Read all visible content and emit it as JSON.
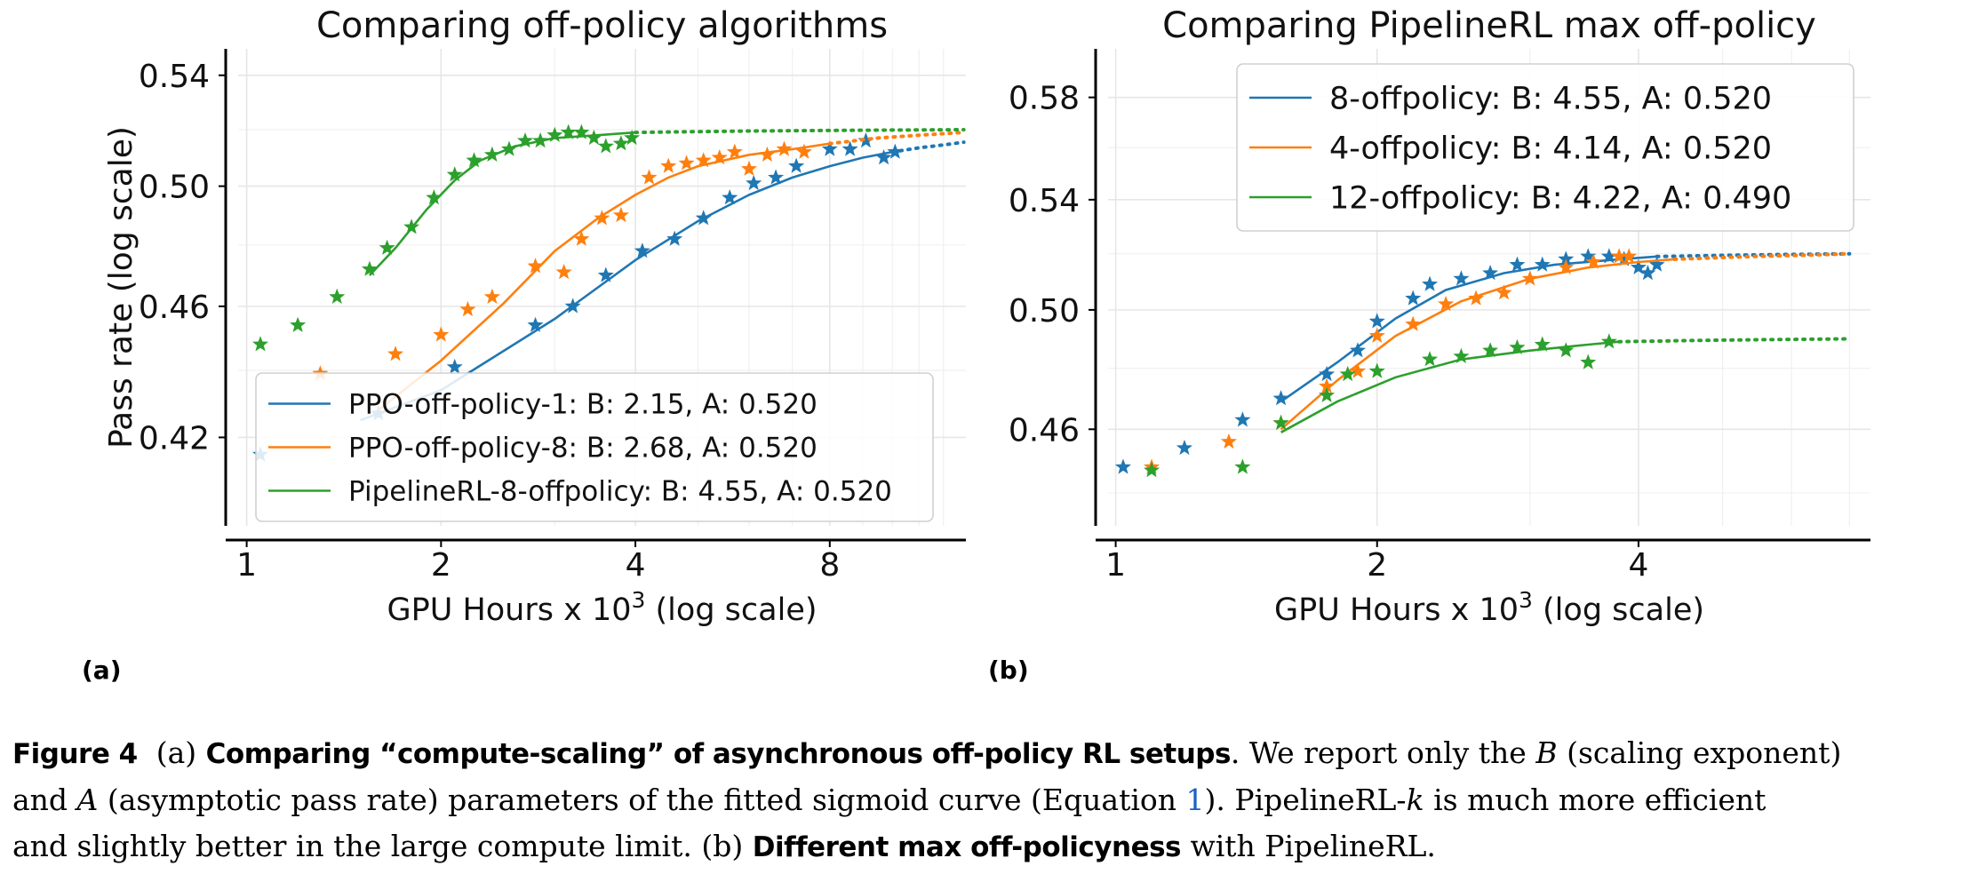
{
  "colors": {
    "blue": "#1f77b4",
    "orange": "#ff7f0e",
    "green": "#2ca02c",
    "grid": "#e6e6e6",
    "link": "#1a5fc7"
  },
  "panel_labels": {
    "a": "(a)",
    "b": "(b)"
  },
  "caption": {
    "fig": "Figure 4",
    "a_tag": "(a)",
    "bold1": "Comparing “compute-scaling” of asynchronous off-policy RL setups",
    "t1": ". We report only the ",
    "B": "B",
    "t2": " (scaling exponent)",
    "t3": "and ",
    "A": "A",
    "t4": " (asymptotic pass rate) parameters of the fitted sigmoid curve (Equation ",
    "eq": "1",
    "t5": "). PipelineRL-",
    "k": "k",
    "t6": " is much more efficient",
    "t7": "and slightly better in the large compute limit. (b) ",
    "bold2": "Different max off-policyness",
    "t8": " with PipelineRL."
  },
  "chart_data": [
    {
      "type": "scatter",
      "title": "Comparing off-policy algorithms",
      "xlabel": "GPU Hours x 10³ (log scale)",
      "ylabel": "Pass rate (log scale)",
      "x_scale": "log",
      "y_scale": "log",
      "xlim": [
        0.97,
        13.0
      ],
      "ylim": [
        0.395,
        0.55
      ],
      "xticks": [
        1,
        2,
        4,
        8
      ],
      "yticks": [
        0.42,
        0.46,
        0.5,
        0.54
      ],
      "grid": true,
      "legend": "lower-center",
      "series": [
        {
          "name": "PPO-off-policy-1: B: 2.15, A: 0.520",
          "color": "blue",
          "points": [
            [
              1.05,
              0.415
            ],
            [
              1.6,
              0.427
            ],
            [
              2.1,
              0.441
            ],
            [
              2.8,
              0.454
            ],
            [
              3.2,
              0.46
            ],
            [
              3.6,
              0.47
            ],
            [
              4.1,
              0.478
            ],
            [
              4.6,
              0.482
            ],
            [
              5.1,
              0.489
            ],
            [
              5.6,
              0.496
            ],
            [
              6.1,
              0.501
            ],
            [
              6.6,
              0.503
            ],
            [
              7.1,
              0.507
            ],
            [
              8.0,
              0.513
            ],
            [
              8.6,
              0.513
            ],
            [
              9.1,
              0.516
            ],
            [
              9.7,
              0.51
            ],
            [
              10.1,
              0.512
            ]
          ],
          "fit": [
            [
              1.5,
              0.425
            ],
            [
              2.0,
              0.434
            ],
            [
              3.0,
              0.456
            ],
            [
              4.0,
              0.475
            ],
            [
              5.0,
              0.488
            ],
            [
              6.0,
              0.497
            ],
            [
              7.0,
              0.503
            ],
            [
              8.0,
              0.507
            ],
            [
              9.0,
              0.51
            ],
            [
              10.0,
              0.512
            ]
          ],
          "extrapolation": [
            [
              10.0,
              0.512
            ],
            [
              11.0,
              0.5135
            ],
            [
              12.0,
              0.5145
            ],
            [
              12.9,
              0.5155
            ]
          ]
        },
        {
          "name": "PPO-off-policy-8: B: 2.68, A: 0.520",
          "color": "orange",
          "points": [
            [
              1.3,
              0.439
            ],
            [
              1.7,
              0.445
            ],
            [
              2.0,
              0.451
            ],
            [
              2.2,
              0.459
            ],
            [
              2.4,
              0.463
            ],
            [
              2.8,
              0.473
            ],
            [
              3.1,
              0.471
            ],
            [
              3.3,
              0.482
            ],
            [
              3.55,
              0.489
            ],
            [
              3.8,
              0.49
            ],
            [
              4.2,
              0.503
            ],
            [
              4.5,
              0.507
            ],
            [
              4.8,
              0.508
            ],
            [
              5.1,
              0.509
            ],
            [
              5.4,
              0.51
            ],
            [
              5.7,
              0.512
            ],
            [
              6.0,
              0.506
            ],
            [
              6.4,
              0.511
            ],
            [
              6.8,
              0.513
            ],
            [
              7.3,
              0.512
            ]
          ],
          "fit": [
            [
              1.6,
              0.428
            ],
            [
              2.0,
              0.443
            ],
            [
              2.5,
              0.461
            ],
            [
              3.0,
              0.478
            ],
            [
              3.5,
              0.489
            ],
            [
              4.0,
              0.497
            ],
            [
              4.5,
              0.503
            ],
            [
              5.0,
              0.507
            ],
            [
              6.0,
              0.511
            ],
            [
              7.0,
              0.513
            ],
            [
              8.0,
              0.515
            ]
          ],
          "extrapolation": [
            [
              8.0,
              0.515
            ],
            [
              9.5,
              0.517
            ],
            [
              11.0,
              0.518
            ],
            [
              12.9,
              0.519
            ]
          ]
        },
        {
          "name": "PipelineRL-8-offpolicy: B: 4.55, A: 0.520",
          "color": "green",
          "points": [
            [
              1.05,
              0.448
            ],
            [
              1.2,
              0.454
            ],
            [
              1.38,
              0.463
            ],
            [
              1.55,
              0.472
            ],
            [
              1.65,
              0.479
            ],
            [
              1.8,
              0.486
            ],
            [
              1.95,
              0.496
            ],
            [
              2.1,
              0.504
            ],
            [
              2.25,
              0.509
            ],
            [
              2.4,
              0.511
            ],
            [
              2.55,
              0.513
            ],
            [
              2.7,
              0.516
            ],
            [
              2.85,
              0.516
            ],
            [
              3.0,
              0.518
            ],
            [
              3.15,
              0.519
            ],
            [
              3.3,
              0.519
            ],
            [
              3.45,
              0.517
            ],
            [
              3.6,
              0.514
            ],
            [
              3.8,
              0.515
            ],
            [
              3.95,
              0.517
            ]
          ],
          "fit": [
            [
              1.55,
              0.47
            ],
            [
              1.7,
              0.479
            ],
            [
              1.9,
              0.492
            ],
            [
              2.1,
              0.502
            ],
            [
              2.3,
              0.509
            ],
            [
              2.6,
              0.514
            ],
            [
              3.0,
              0.517
            ],
            [
              3.5,
              0.518
            ],
            [
              4.0,
              0.519
            ]
          ],
          "extrapolation": [
            [
              4.0,
              0.519
            ],
            [
              6.0,
              0.5195
            ],
            [
              9.0,
              0.5198
            ],
            [
              12.9,
              0.52
            ]
          ]
        }
      ]
    },
    {
      "type": "scatter",
      "title": "Comparing PipelineRL max off-policy",
      "xlabel": "GPU Hours x 10³ (log scale)",
      "ylabel": "",
      "x_scale": "log",
      "y_scale": "log",
      "xlim": [
        0.98,
        7.4
      ],
      "ylim": [
        0.43,
        0.6
      ],
      "xticks": [
        1,
        2,
        4
      ],
      "yticks": [
        0.46,
        0.5,
        0.54,
        0.58
      ],
      "grid": true,
      "legend": "upper-right",
      "series": [
        {
          "name": "8-offpolicy: B: 4.55, A: 0.520",
          "color": "blue",
          "points": [
            [
              1.02,
              0.448
            ],
            [
              1.2,
              0.454
            ],
            [
              1.4,
              0.463
            ],
            [
              1.55,
              0.47
            ],
            [
              1.75,
              0.478
            ],
            [
              1.9,
              0.486
            ],
            [
              2.0,
              0.496
            ],
            [
              2.2,
              0.504
            ],
            [
              2.3,
              0.509
            ],
            [
              2.5,
              0.511
            ],
            [
              2.7,
              0.513
            ],
            [
              2.9,
              0.516
            ],
            [
              3.1,
              0.516
            ],
            [
              3.3,
              0.518
            ],
            [
              3.5,
              0.519
            ],
            [
              3.7,
              0.519
            ],
            [
              3.85,
              0.518
            ],
            [
              4.0,
              0.515
            ],
            [
              4.1,
              0.513
            ],
            [
              4.2,
              0.516
            ]
          ],
          "fit": [
            [
              1.55,
              0.469
            ],
            [
              1.8,
              0.482
            ],
            [
              2.1,
              0.497
            ],
            [
              2.4,
              0.507
            ],
            [
              2.8,
              0.513
            ],
            [
              3.2,
              0.516
            ],
            [
              3.8,
              0.518
            ],
            [
              4.2,
              0.519
            ]
          ],
          "extrapolation": [
            [
              4.2,
              0.519
            ],
            [
              5.2,
              0.5195
            ],
            [
              6.2,
              0.5198
            ],
            [
              7.0,
              0.52
            ]
          ]
        },
        {
          "name": "4-offpolicy: B: 4.14, A: 0.520",
          "color": "orange",
          "points": [
            [
              1.1,
              0.448
            ],
            [
              1.35,
              0.456
            ],
            [
              1.55,
              0.462
            ],
            [
              1.75,
              0.474
            ],
            [
              1.9,
              0.479
            ],
            [
              2.0,
              0.491
            ],
            [
              2.2,
              0.495
            ],
            [
              2.4,
              0.502
            ],
            [
              2.6,
              0.504
            ],
            [
              2.8,
              0.506
            ],
            [
              3.0,
              0.511
            ],
            [
              3.3,
              0.515
            ],
            [
              3.55,
              0.517
            ],
            [
              3.8,
              0.519
            ],
            [
              3.9,
              0.519
            ]
          ],
          "fit": [
            [
              1.55,
              0.46
            ],
            [
              1.8,
              0.476
            ],
            [
              2.1,
              0.491
            ],
            [
              2.5,
              0.503
            ],
            [
              3.0,
              0.511
            ],
            [
              3.5,
              0.515
            ],
            [
              4.0,
              0.517
            ],
            [
              4.4,
              0.518
            ]
          ],
          "extrapolation": [
            [
              4.4,
              0.518
            ],
            [
              5.4,
              0.519
            ],
            [
              6.3,
              0.5195
            ],
            [
              7.0,
              0.52
            ]
          ]
        },
        {
          "name": "12-offpolicy: B: 4.22, A: 0.490",
          "color": "green",
          "points": [
            [
              1.1,
              0.447
            ],
            [
              1.4,
              0.448
            ],
            [
              1.55,
              0.462
            ],
            [
              1.75,
              0.471
            ],
            [
              1.85,
              0.478
            ],
            [
              2.0,
              0.479
            ],
            [
              2.3,
              0.483
            ],
            [
              2.5,
              0.484
            ],
            [
              2.7,
              0.486
            ],
            [
              2.9,
              0.487
            ],
            [
              3.1,
              0.488
            ],
            [
              3.3,
              0.486
            ],
            [
              3.5,
              0.482
            ],
            [
              3.7,
              0.489
            ]
          ],
          "fit": [
            [
              1.55,
              0.459
            ],
            [
              1.8,
              0.469
            ],
            [
              2.1,
              0.477
            ],
            [
              2.5,
              0.483
            ],
            [
              3.0,
              0.486
            ],
            [
              3.5,
              0.488
            ],
            [
              3.8,
              0.489
            ]
          ],
          "extrapolation": [
            [
              3.8,
              0.489
            ],
            [
              4.8,
              0.4895
            ],
            [
              6.0,
              0.4898
            ],
            [
              7.0,
              0.49
            ]
          ]
        }
      ]
    }
  ]
}
